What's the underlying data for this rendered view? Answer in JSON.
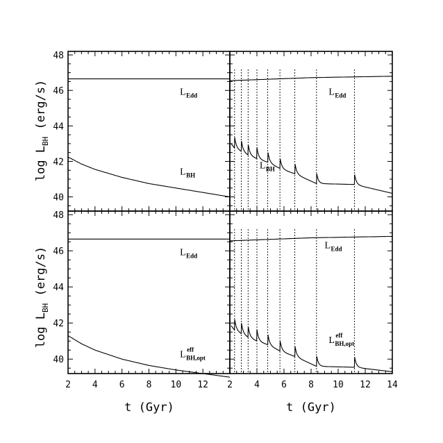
{
  "chart_data": {
    "type": "line",
    "title": "",
    "xlabel": "t (Gyr)",
    "ylabel_main": "log L",
    "ylabel_sub": "BH",
    "ylabel_unit": " (erg/s)",
    "ylim": [
      39.2,
      48.2
    ],
    "x_ticks_left": [
      "2",
      "4",
      "6",
      "8",
      "10",
      "12"
    ],
    "x_ticks_right": [
      "2",
      "4",
      "6",
      "8",
      "10",
      "12",
      "14"
    ],
    "y_ticks_top": [
      "40",
      "42",
      "44",
      "46",
      "48"
    ],
    "y_ticks_bottom": [
      "40",
      "42",
      "44",
      "46",
      "48"
    ],
    "burst_times": [
      2.35,
      2.85,
      3.35,
      4.0,
      4.8,
      5.7,
      6.8,
      8.4,
      11.2
    ],
    "panels": [
      {
        "position": "top-left",
        "xlim": [
          2,
          14
        ],
        "edd_series": {
          "x": [
            2,
            8,
            14
          ],
          "y": [
            46.65,
            46.65,
            46.65
          ]
        },
        "lum_series": {
          "x": [
            2,
            3,
            4,
            6,
            8,
            10,
            12,
            14
          ],
          "y": [
            42.25,
            41.85,
            41.55,
            41.1,
            40.75,
            40.5,
            40.25,
            40.0
          ]
        },
        "labels": [
          {
            "main": "L",
            "sub": "Edd",
            "sup": "",
            "t": 10.3,
            "v": 45.75
          },
          {
            "main": "L",
            "sub": "BH",
            "sup": "",
            "t": 10.3,
            "v": 41.25
          }
        ]
      },
      {
        "position": "top-right",
        "xlim": [
          2,
          14
        ],
        "edd_series": {
          "x": [
            2,
            8,
            14
          ],
          "y": [
            46.55,
            46.72,
            46.8
          ]
        },
        "floor_series": {
          "x": [
            2.1,
            2.35,
            2.85,
            3.35,
            4.0,
            4.8,
            5.7,
            6.8,
            8.4,
            11.2,
            14
          ],
          "y": [
            43.0,
            42.75,
            42.55,
            42.35,
            42.15,
            41.95,
            41.6,
            41.3,
            40.75,
            40.7,
            40.2
          ]
        },
        "labels": [
          {
            "main": "L",
            "sub": "Edd",
            "sup": "",
            "t": 9.3,
            "v": 45.75
          },
          {
            "main": "L",
            "sub": "BH",
            "sup": "",
            "t": 4.2,
            "v": 41.6
          }
        ]
      },
      {
        "position": "bottom-left",
        "xlim": [
          2,
          14
        ],
        "edd_series": {
          "x": [
            2,
            8,
            14
          ],
          "y": [
            46.65,
            46.65,
            46.65
          ]
        },
        "lum_series": {
          "x": [
            2,
            3,
            4,
            6,
            8,
            10,
            12,
            14
          ],
          "y": [
            41.3,
            40.85,
            40.5,
            40.0,
            39.65,
            39.4,
            39.2,
            39.0
          ]
        },
        "labels": [
          {
            "main": "L",
            "sub": "Edd",
            "sup": "",
            "t": 10.3,
            "v": 45.75
          },
          {
            "main": "L",
            "sub": "BH,opt",
            "sup": "eff",
            "t": 10.3,
            "v": 40.1
          }
        ]
      },
      {
        "position": "bottom-right",
        "xlim": [
          2,
          14
        ],
        "edd_series": {
          "x": [
            2,
            8,
            14
          ],
          "y": [
            46.55,
            46.72,
            46.8
          ]
        },
        "floor_series": {
          "x": [
            2.1,
            2.35,
            2.85,
            3.35,
            4.0,
            4.8,
            5.7,
            6.8,
            8.4,
            11.2,
            14
          ],
          "y": [
            41.85,
            41.6,
            41.4,
            41.2,
            41.0,
            40.8,
            40.45,
            40.15,
            39.6,
            39.55,
            39.3
          ]
        },
        "labels": [
          {
            "main": "L",
            "sub": "Edd",
            "sup": "",
            "t": 9.0,
            "v": 46.15
          },
          {
            "main": "L",
            "sub": "BH,opt",
            "sup": "eff",
            "t": 9.3,
            "v": 40.9
          }
        ]
      }
    ]
  }
}
